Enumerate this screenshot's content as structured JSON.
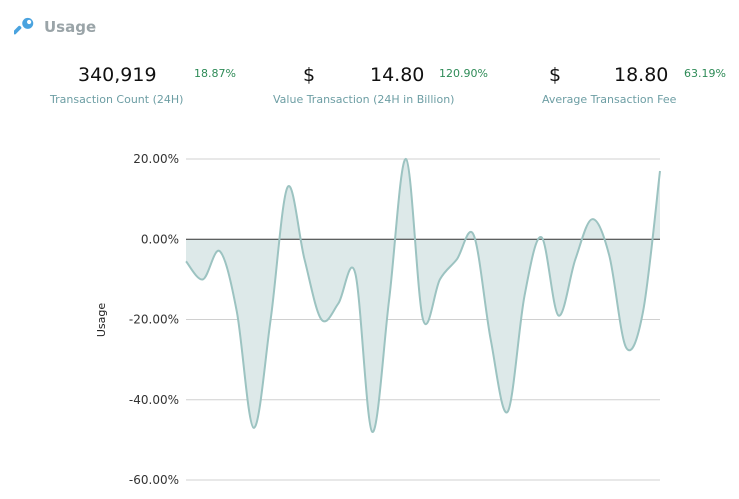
{
  "header": {
    "title": "Usage",
    "icon": "wrench-icon"
  },
  "stats": [
    {
      "currency": "",
      "value": "340,919",
      "change": "18.87%",
      "label": "Transaction Count (24H)"
    },
    {
      "currency": "$",
      "value": "14.80",
      "change": "120.90%",
      "label": "Value Transaction (24H in Billion)"
    },
    {
      "currency": "$",
      "value": "18.80",
      "change": "63.19%",
      "label": "Average Transaction Fee"
    }
  ],
  "colors": {
    "line": "#9cc3c1",
    "fill": "#dde9e9",
    "grid": "#d0d0d0",
    "zero": "#333333",
    "positive": "#2e8b57",
    "label": "#6d9ea4"
  },
  "chart_data": {
    "type": "area",
    "title": "",
    "xlabel": "",
    "ylabel": "Usage",
    "ylim": [
      -60,
      20
    ],
    "yticks": [
      -60,
      -40,
      -20,
      0,
      20
    ],
    "ytick_labels": [
      "-60.00%",
      "-40.00%",
      "-20.00%",
      "0.00%",
      "20.00%"
    ],
    "grid": true,
    "legend": "none",
    "series": [
      {
        "values": [
          -5.5,
          -10,
          -3,
          -18,
          -47,
          -20,
          13,
          -5,
          -20,
          -16,
          -8.5,
          -48,
          -15,
          20,
          -20,
          -10,
          -5,
          1,
          -25,
          -43,
          -14,
          0.5,
          -19,
          -5,
          5,
          -4,
          -27,
          -18,
          17
        ]
      }
    ]
  }
}
